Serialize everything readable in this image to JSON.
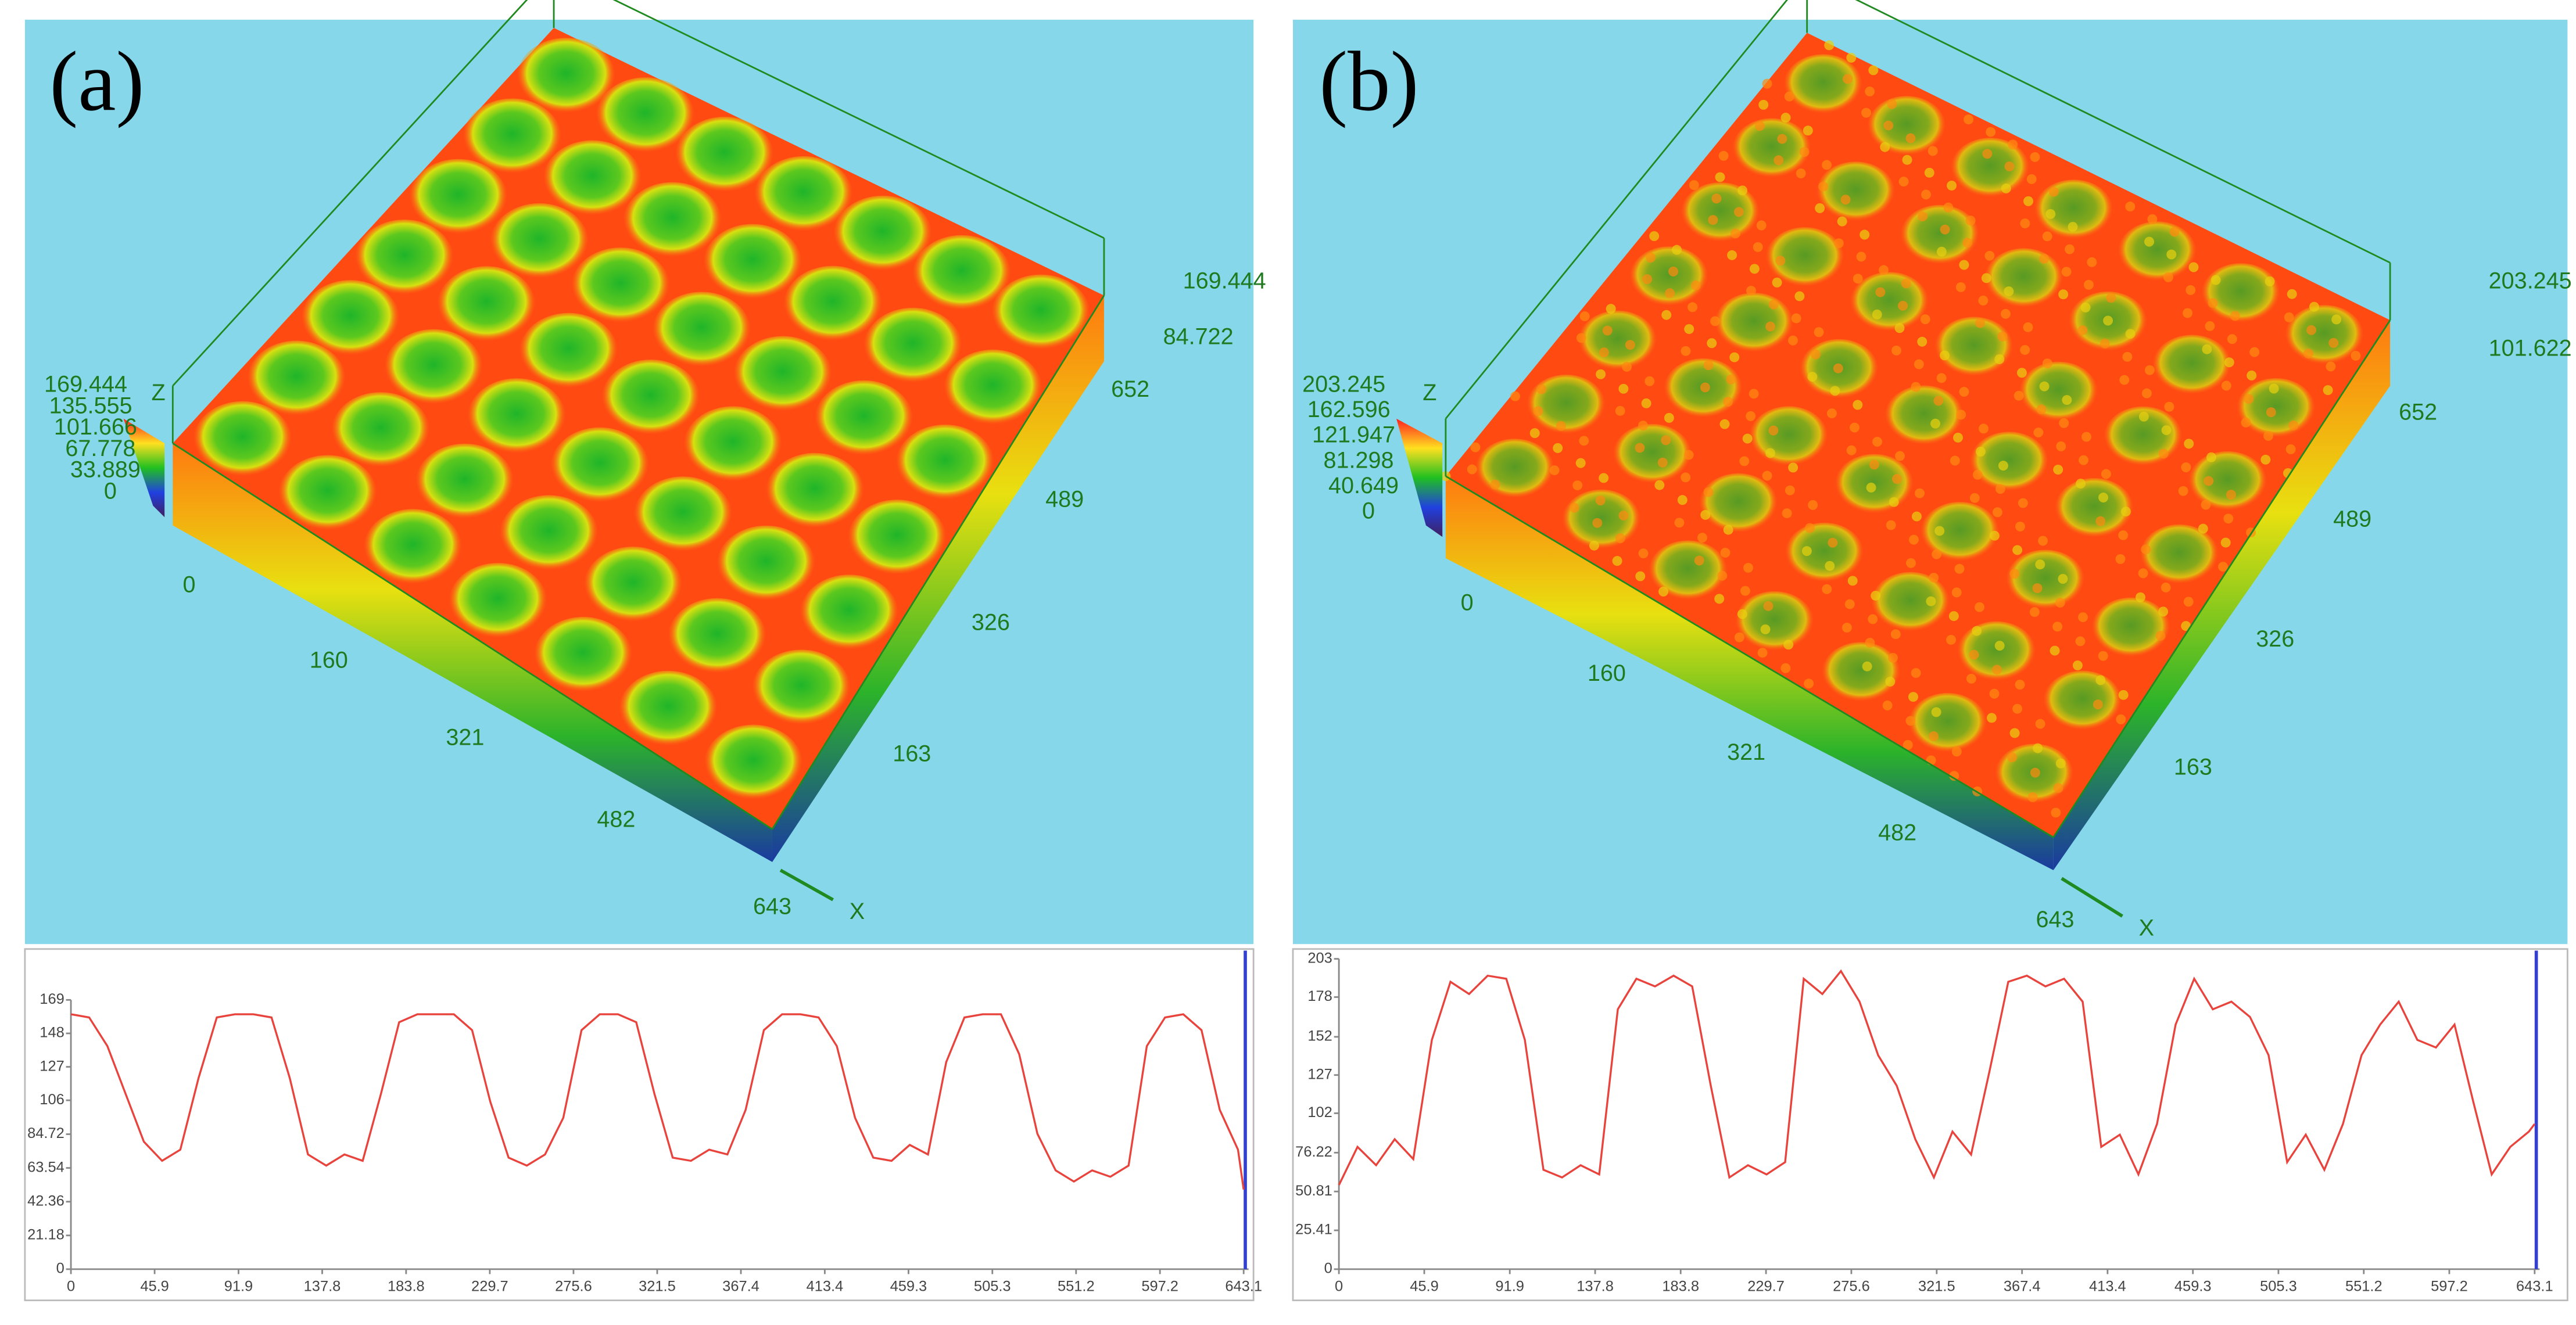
{
  "chart_data": [
    {
      "type": "line",
      "label": "(a)",
      "surface": {
        "z_axis": "Z",
        "x_axis": "X",
        "colorbar_ticks": [
          169.444,
          135.555,
          101.666,
          67.778,
          33.889,
          0
        ],
        "x_ticks": [
          0,
          160,
          321,
          482,
          643
        ],
        "y_ticks": [
          163,
          326,
          489,
          652
        ],
        "z_ticks": [
          169.444,
          84.722
        ]
      },
      "xlim": [
        0,
        643.1
      ],
      "xticks": [
        0,
        45.9,
        91.9,
        137.8,
        183.8,
        229.7,
        275.6,
        321.5,
        367.4,
        413.4,
        459.3,
        505.3,
        551.2,
        597.2,
        643.1
      ],
      "ylim": [
        0,
        169
      ],
      "yticks": [
        0,
        21.18,
        42.36,
        63.54,
        84.72,
        106,
        127,
        148,
        169
      ],
      "x": [
        0,
        10,
        20,
        30,
        40,
        50,
        60,
        70,
        80,
        90,
        100,
        110,
        120,
        130,
        140,
        150,
        160,
        170,
        180,
        190,
        200,
        210,
        220,
        230,
        240,
        250,
        260,
        270,
        280,
        290,
        300,
        310,
        320,
        330,
        340,
        350,
        360,
        370,
        380,
        390,
        400,
        410,
        420,
        430,
        440,
        450,
        460,
        470,
        480,
        490,
        500,
        510,
        520,
        530,
        540,
        550,
        560,
        570,
        580,
        590,
        600,
        610,
        620,
        630,
        640,
        643.1
      ],
      "series": [
        {
          "color": "#e8433c",
          "values": [
            160,
            158,
            140,
            110,
            80,
            68,
            75,
            120,
            158,
            160,
            160,
            158,
            120,
            72,
            65,
            72,
            68,
            110,
            155,
            160,
            160,
            160,
            150,
            105,
            70,
            65,
            72,
            95,
            150,
            160,
            160,
            155,
            110,
            70,
            68,
            75,
            72,
            100,
            150,
            160,
            160,
            158,
            140,
            95,
            70,
            68,
            78,
            72,
            130,
            158,
            160,
            160,
            135,
            85,
            62,
            55,
            62,
            58,
            65,
            140,
            158,
            160,
            150,
            100,
            75,
            50
          ]
        }
      ]
    },
    {
      "type": "line",
      "label": "(b)",
      "surface": {
        "z_axis": "Z",
        "x_axis": "X",
        "colorbar_ticks": [
          203.245,
          162.596,
          121.947,
          81.298,
          40.649,
          0
        ],
        "x_ticks": [
          0,
          160,
          321,
          482,
          643
        ],
        "y_ticks": [
          163,
          326,
          489,
          652
        ],
        "z_ticks": [
          203.245,
          101.622
        ]
      },
      "xlim": [
        0,
        643.1
      ],
      "xticks": [
        0,
        45.9,
        91.9,
        137.8,
        183.8,
        229.7,
        275.6,
        321.5,
        367.4,
        413.4,
        459.3,
        505.3,
        551.2,
        597.2,
        643.1
      ],
      "ylim": [
        0,
        203
      ],
      "yticks": [
        0,
        25.41,
        50.81,
        76.22,
        102,
        127,
        152,
        178,
        203
      ],
      "x": [
        0,
        10,
        20,
        30,
        40,
        50,
        60,
        70,
        80,
        90,
        100,
        110,
        120,
        130,
        140,
        150,
        160,
        170,
        180,
        190,
        200,
        210,
        220,
        230,
        240,
        250,
        260,
        270,
        280,
        290,
        300,
        310,
        320,
        330,
        340,
        350,
        360,
        370,
        380,
        390,
        400,
        410,
        420,
        430,
        440,
        450,
        460,
        470,
        480,
        490,
        500,
        510,
        520,
        530,
        540,
        550,
        560,
        570,
        580,
        590,
        600,
        610,
        620,
        630,
        640,
        643.1
      ],
      "series": [
        {
          "color": "#e8433c",
          "values": [
            55,
            80,
            68,
            85,
            72,
            150,
            188,
            180,
            192,
            190,
            150,
            65,
            60,
            68,
            62,
            170,
            190,
            185,
            192,
            185,
            120,
            60,
            68,
            62,
            70,
            190,
            180,
            195,
            175,
            140,
            120,
            85,
            60,
            90,
            75,
            130,
            188,
            192,
            185,
            190,
            175,
            80,
            88,
            62,
            95,
            160,
            190,
            170,
            175,
            165,
            140,
            70,
            88,
            65,
            95,
            140,
            160,
            175,
            150,
            145,
            160,
            110,
            62,
            80,
            90,
            95
          ]
        }
      ]
    }
  ]
}
